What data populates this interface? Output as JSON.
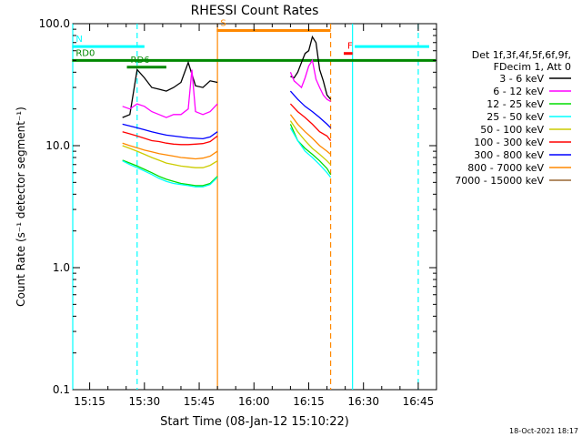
{
  "chart_data": {
    "type": "line",
    "title": "RHESSI Count Rates",
    "xlabel": "Start Time (08-Jan-12 15:10:22)",
    "ylabel": "Count Rate (s⁻¹ detector segment⁻¹)",
    "yscale": "log",
    "xlim": [
      "15:10:22",
      "16:50"
    ],
    "ylim": [
      0.1,
      100.0
    ],
    "x_ticks": [
      "15:15",
      "15:30",
      "15:45",
      "16:00",
      "16:15",
      "16:30",
      "16:45"
    ],
    "y_ticks": [
      "0.1",
      "1.0",
      "10.0",
      "100.0"
    ],
    "footer": "18-Oct-2021 18:17",
    "legend": {
      "placement": "right",
      "header": [
        "Det 1f,3f,4f,5f,6f,9f,",
        "FDecim 1, Att 0"
      ],
      "entries": [
        {
          "label": "3 - 6 keV",
          "color": "#000000"
        },
        {
          "label": "6 - 12 keV",
          "color": "#ff00ff"
        },
        {
          "label": "12 - 25 keV",
          "color": "#00dd00"
        },
        {
          "label": "25 - 50 keV",
          "color": "#00ffff"
        },
        {
          "label": "50 - 100 keV",
          "color": "#cccc00"
        },
        {
          "label": "100 - 300 keV",
          "color": "#ff0000"
        },
        {
          "label": "300 - 800 keV",
          "color": "#0000ff"
        },
        {
          "label": "800 - 7000 keV",
          "color": "#ff8800"
        },
        {
          "label": "7000 - 15000 keV",
          "color": "#996633"
        }
      ]
    },
    "series": [
      {
        "name": "3 - 6 keV",
        "color": "#000000",
        "segments": [
          {
            "x": [
              24,
              26,
              28,
              30,
              32,
              34,
              36,
              38,
              40,
              42,
              44,
              46,
              48,
              50
            ],
            "y": [
              17,
              18,
              42,
              36,
              30,
              29,
              28,
              30,
              33,
              48,
              31,
              30,
              34,
              33
            ]
          },
          {
            "x": [
              70,
              71,
              72,
              73,
              74,
              75,
              76,
              77,
              78,
              79,
              80,
              81
            ],
            "y": [
              37,
              36,
              40,
              48,
              57,
              60,
              78,
              70,
              42,
              34,
              26,
              24
            ]
          }
        ]
      },
      {
        "name": "6 - 12 keV",
        "color": "#ff00ff",
        "segments": [
          {
            "x": [
              24,
              26,
              28,
              30,
              32,
              34,
              36,
              38,
              40,
              42,
              43,
              44,
              46,
              48,
              50
            ],
            "y": [
              21,
              20,
              22,
              21,
              19,
              18,
              17,
              18,
              18,
              20,
              42,
              19,
              18,
              19,
              22
            ]
          },
          {
            "x": [
              70,
              71,
              72,
              73,
              74,
              75,
              76,
              77,
              78,
              79,
              80,
              81
            ],
            "y": [
              40,
              34,
              32,
              30,
              36,
              45,
              50,
              35,
              30,
              26,
              24,
              23
            ]
          }
        ]
      },
      {
        "name": "12 - 25 keV",
        "color": "#00dd00",
        "segments": [
          {
            "x": [
              24,
              26,
              28,
              30,
              32,
              34,
              36,
              38,
              40,
              42,
              44,
              46,
              48,
              50
            ],
            "y": [
              7.6,
              7.2,
              6.8,
              6.4,
              6.0,
              5.6,
              5.3,
              5.1,
              4.9,
              4.8,
              4.7,
              4.7,
              4.9,
              5.6
            ]
          },
          {
            "x": [
              70,
              72,
              74,
              76,
              78,
              80,
              81
            ],
            "y": [
              15,
              11,
              9.5,
              8.5,
              7.5,
              6.5,
              5.8
            ]
          }
        ]
      },
      {
        "name": "25 - 50 keV",
        "color": "#00ffff",
        "segments": [
          {
            "x": [
              24,
              26,
              28,
              30,
              32,
              34,
              36,
              38,
              40,
              42,
              44,
              46,
              48,
              50
            ],
            "y": [
              7.5,
              7.0,
              6.6,
              6.2,
              5.8,
              5.4,
              5.1,
              4.9,
              4.8,
              4.7,
              4.6,
              4.6,
              4.8,
              5.5
            ]
          },
          {
            "x": [
              70,
              72,
              74,
              76,
              78,
              80,
              81
            ],
            "y": [
              14,
              11,
              9,
              8,
              7,
              6,
              5.5
            ]
          }
        ]
      },
      {
        "name": "50 - 100 keV",
        "color": "#cccc00",
        "segments": [
          {
            "x": [
              24,
              26,
              28,
              30,
              32,
              34,
              36,
              38,
              40,
              42,
              44,
              46,
              48,
              50
            ],
            "y": [
              10,
              9.5,
              9,
              8.5,
              8,
              7.6,
              7.2,
              7,
              6.8,
              6.7,
              6.6,
              6.6,
              6.9,
              7.5
            ]
          },
          {
            "x": [
              70,
              72,
              74,
              76,
              78,
              80,
              81
            ],
            "y": [
              16,
              13,
              11,
              9.5,
              8.5,
              7.5,
              7
            ]
          }
        ]
      },
      {
        "name": "100 - 300 keV",
        "color": "#ff0000",
        "segments": [
          {
            "x": [
              24,
              26,
              28,
              30,
              32,
              34,
              36,
              38,
              40,
              42,
              44,
              46,
              48,
              50
            ],
            "y": [
              13,
              12.5,
              12,
              11.5,
              11,
              10.8,
              10.5,
              10.3,
              10.2,
              10.2,
              10.3,
              10.4,
              10.8,
              12
            ]
          },
          {
            "x": [
              70,
              72,
              74,
              76,
              78,
              80,
              81
            ],
            "y": [
              22,
              19,
              17,
              15,
              13,
              12,
              11
            ]
          }
        ]
      },
      {
        "name": "300 - 800 keV",
        "color": "#0000ff",
        "segments": [
          {
            "x": [
              24,
              26,
              28,
              30,
              32,
              34,
              36,
              38,
              40,
              42,
              44,
              46,
              48,
              50
            ],
            "y": [
              15,
              14.5,
              14,
              13.5,
              13,
              12.6,
              12.2,
              12,
              11.8,
              11.6,
              11.5,
              11.4,
              11.8,
              13
            ]
          },
          {
            "x": [
              70,
              72,
              74,
              76,
              78,
              80,
              81
            ],
            "y": [
              28,
              24,
              21,
              19,
              17,
              15,
              14
            ]
          }
        ]
      },
      {
        "name": "800 - 7000 keV",
        "color": "#ff8800",
        "segments": [
          {
            "x": [
              24,
              26,
              28,
              30,
              32,
              34,
              36,
              38,
              40,
              42,
              44,
              46,
              48,
              50
            ],
            "y": [
              10.5,
              10,
              9.6,
              9.2,
              8.9,
              8.6,
              8.4,
              8.2,
              8.0,
              7.9,
              7.8,
              7.9,
              8.2,
              9
            ]
          },
          {
            "x": [
              70,
              72,
              74,
              76,
              78,
              80,
              81
            ],
            "y": [
              18,
              15,
              13,
              11.5,
              10,
              9,
              8.5
            ]
          }
        ]
      },
      {
        "name": "7000 - 15000 keV",
        "color": "#996633",
        "segments": []
      }
    ],
    "annotations": [
      {
        "text": "N",
        "color": "#00ffff",
        "kind": "bar",
        "x": [
          15.17,
          15.5
        ],
        "y": 65
      },
      {
        "text": "",
        "color": "#00ffff",
        "kind": "bar",
        "x": [
          16.46,
          16.8
        ],
        "y": 65
      },
      {
        "text": "S",
        "color": "#ff8800",
        "kind": "bar",
        "x": [
          15.83,
          16.35
        ],
        "y": 88
      },
      {
        "text": "RD6",
        "color": "#008800",
        "kind": "bar",
        "x": [
          15.42,
          15.6
        ],
        "y": 44
      },
      {
        "text": "RD0",
        "color": "#008800",
        "kind": "bar",
        "x": [
          15.17,
          16.83
        ],
        "y": 50
      },
      {
        "text": "F",
        "color": "#ff0000",
        "kind": "bar",
        "x": [
          16.41,
          16.45
        ],
        "y": 57
      }
    ],
    "vertical_lines": [
      {
        "x": "15:10:22",
        "color": "#00ffff",
        "style": "solid"
      },
      {
        "x": "15:28",
        "color": "#00ffff",
        "style": "dashed"
      },
      {
        "x": "16:27",
        "color": "#00ffff",
        "style": "solid"
      },
      {
        "x": "16:45",
        "color": "#00ffff",
        "style": "dashed"
      },
      {
        "x": "15:50",
        "color": "#ff8800",
        "style": "solid"
      },
      {
        "x": "16:21",
        "color": "#ff8800",
        "style": "dashed"
      }
    ]
  }
}
